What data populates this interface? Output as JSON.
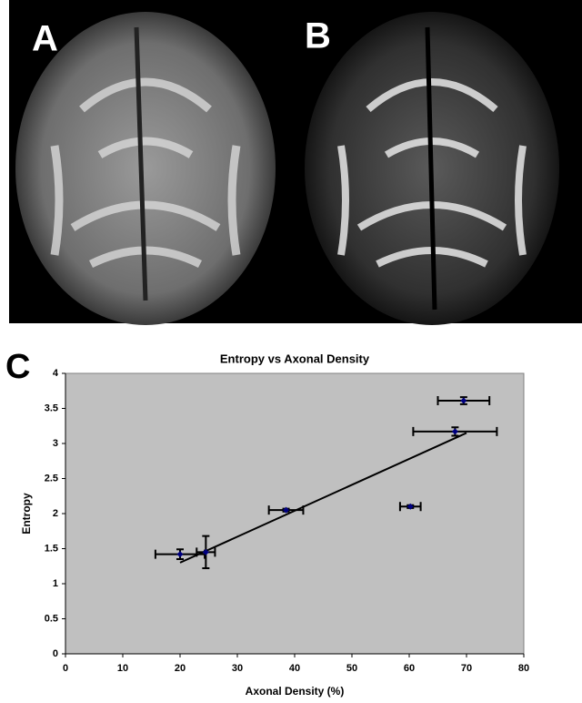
{
  "panels": {
    "a": "A",
    "b": "B",
    "c": "C"
  },
  "chart_data": {
    "type": "scatter",
    "title": "Entropy vs Axonal Density",
    "x_label": "Axonal Density (%)",
    "y_label": "Entropy",
    "x": [
      20,
      24.5,
      38.5,
      60.2,
      68,
      69.5
    ],
    "values": [
      1.42,
      1.45,
      2.05,
      2.1,
      3.17,
      3.61
    ],
    "xerr": [
      4.3,
      1.6,
      3,
      1.8,
      7.3,
      4.5
    ],
    "yerr": [
      0.07,
      0.23,
      0.02,
      0.02,
      0.06,
      0.05
    ],
    "color": "#000080",
    "trendline": {
      "x": [
        20,
        70
      ],
      "values": [
        1.3,
        3.15
      ]
    },
    "xlim": [
      0,
      80
    ],
    "xticks": [
      0,
      10,
      20,
      30,
      40,
      50,
      60,
      70,
      80
    ],
    "ylim": [
      0,
      4
    ],
    "yticks": [
      0,
      0.5,
      1,
      1.5,
      2,
      2.5,
      3,
      3.5,
      4
    ],
    "grid": false
  }
}
